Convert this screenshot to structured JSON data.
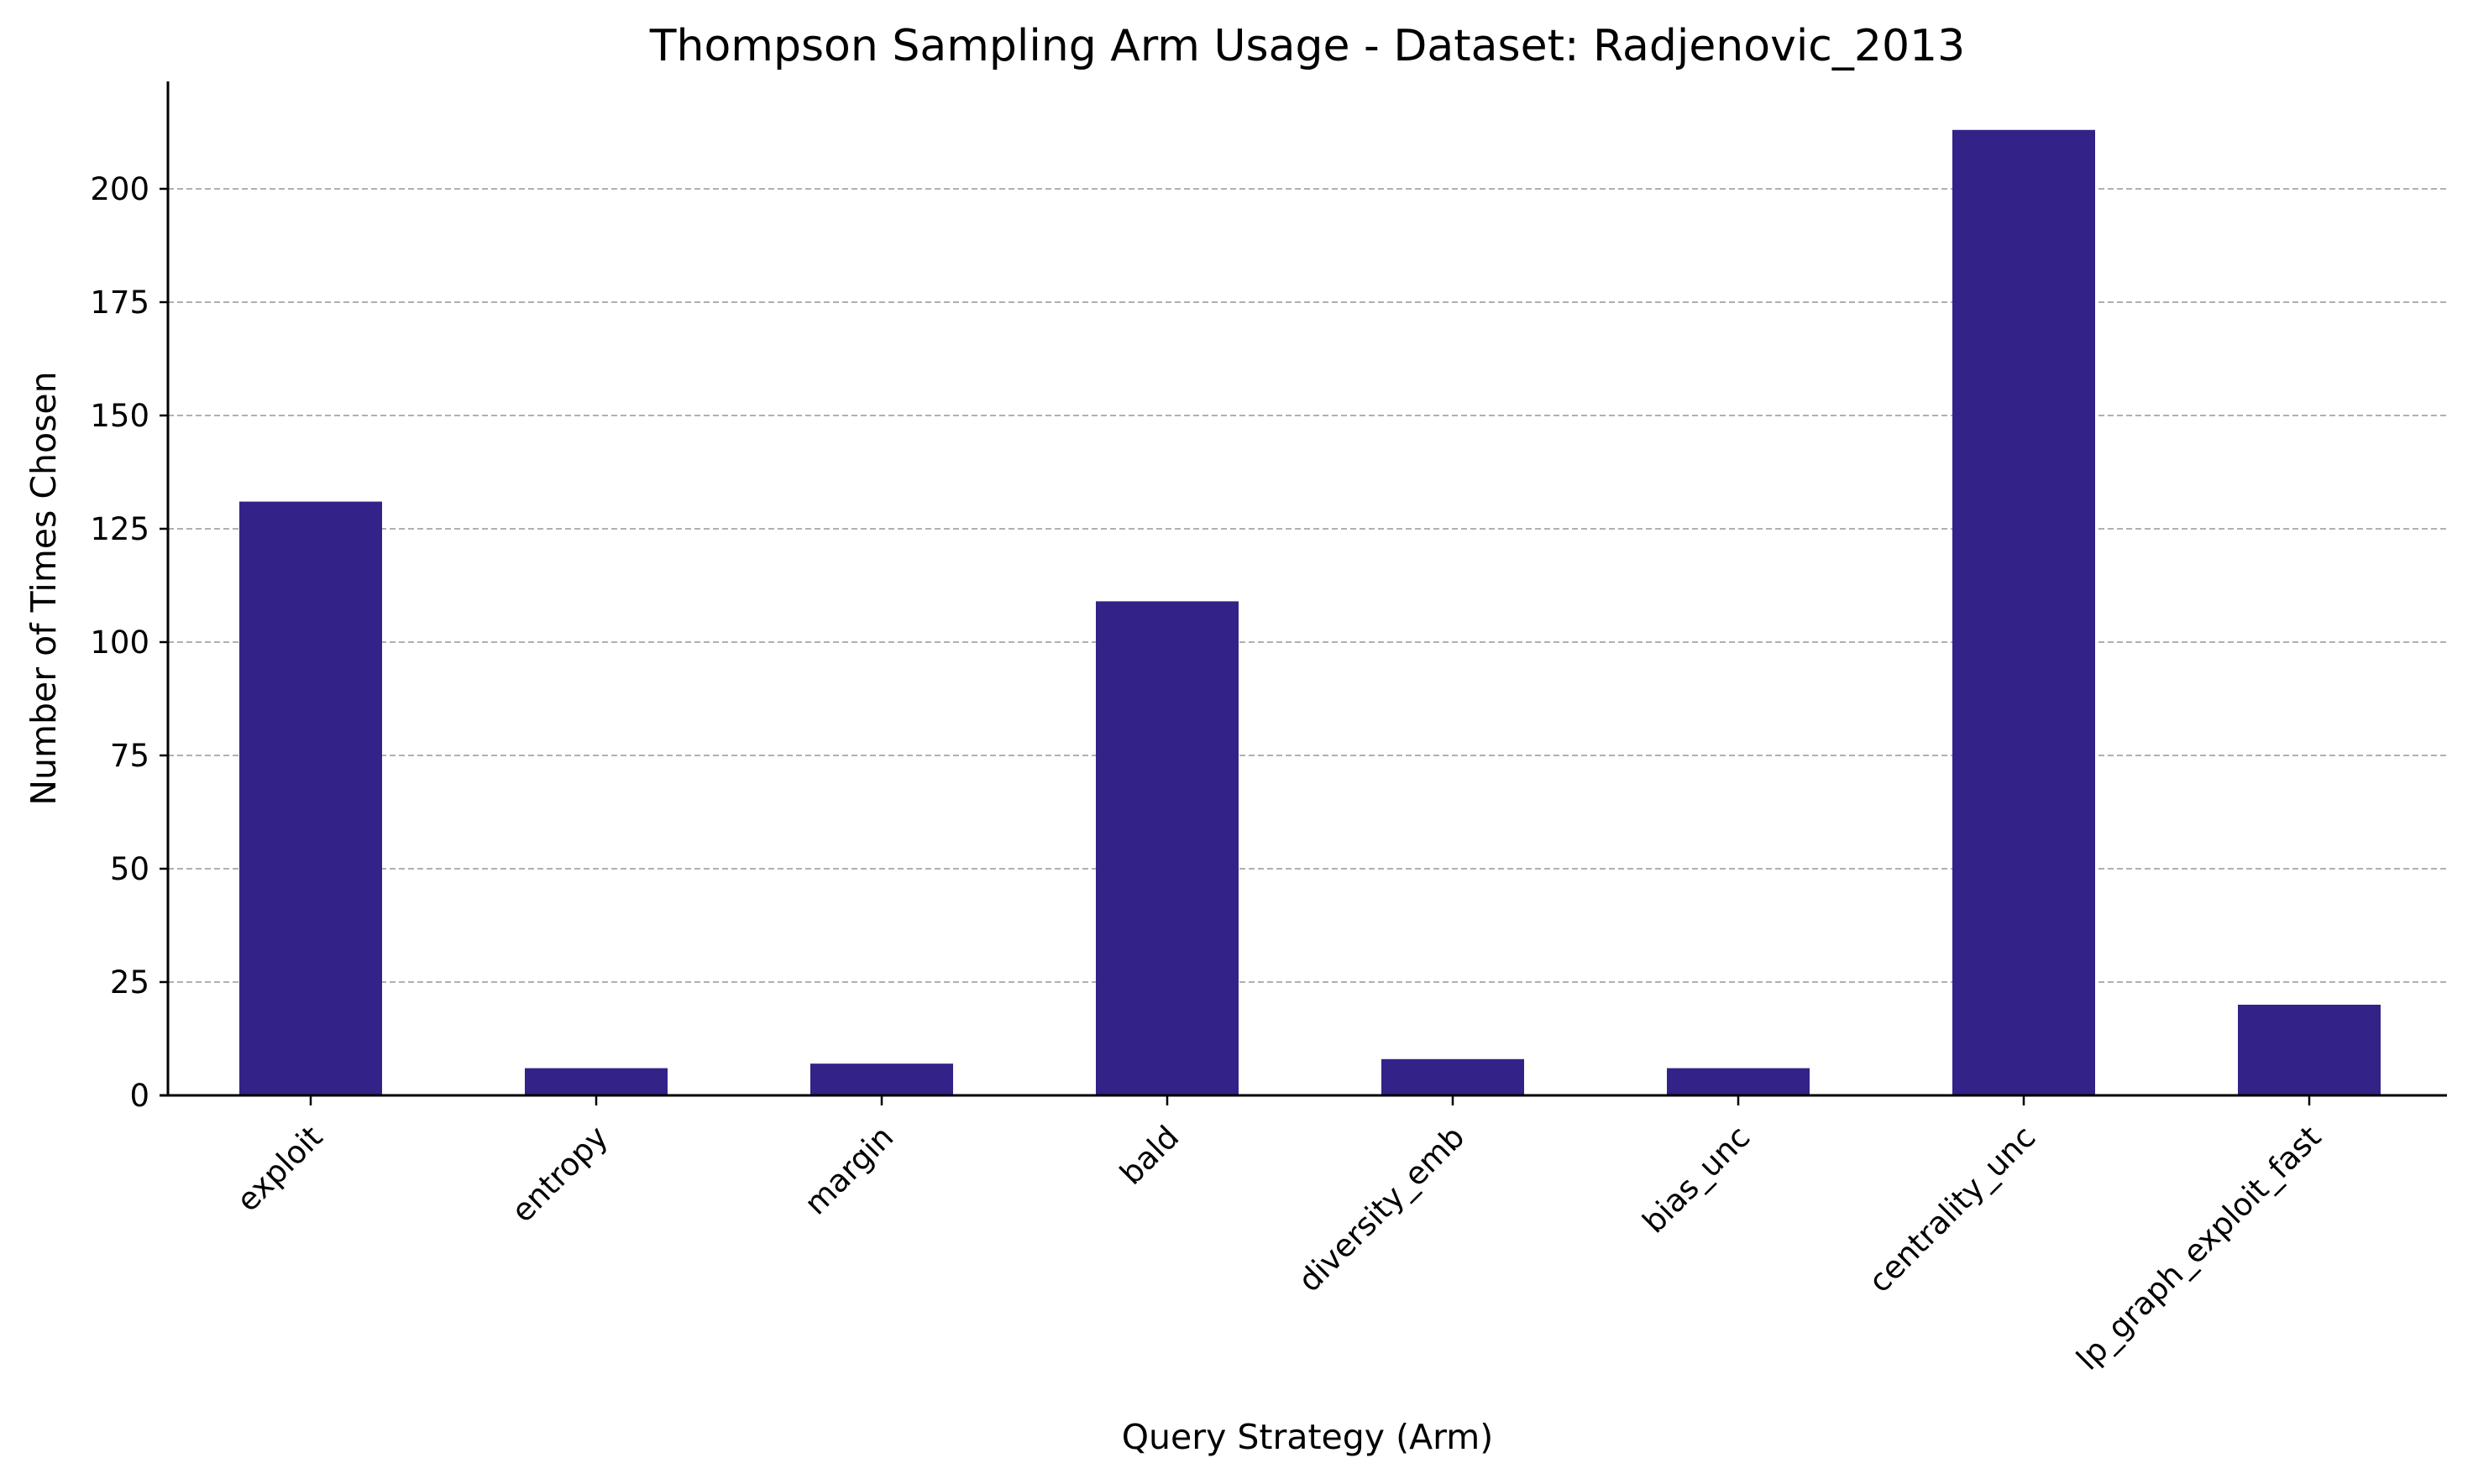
{
  "chart_data": {
    "type": "bar",
    "title": "Thompson Sampling Arm Usage - Dataset: Radjenovic_2013",
    "xlabel": "Query Strategy (Arm)",
    "ylabel": "Number of Times Chosen",
    "categories": [
      "exploit",
      "entropy",
      "margin",
      "bald",
      "diversity_emb",
      "bias_unc",
      "centrality_unc",
      "lp_graph_exploit_fast"
    ],
    "values": [
      131,
      6,
      7,
      109,
      8,
      6,
      213,
      20
    ],
    "ylim": [
      0,
      223.7
    ],
    "yticks": [
      0,
      25,
      50,
      75,
      100,
      125,
      150,
      175,
      200
    ],
    "bar_color": "#332288",
    "grid": "y-dashed",
    "legend": "none"
  }
}
